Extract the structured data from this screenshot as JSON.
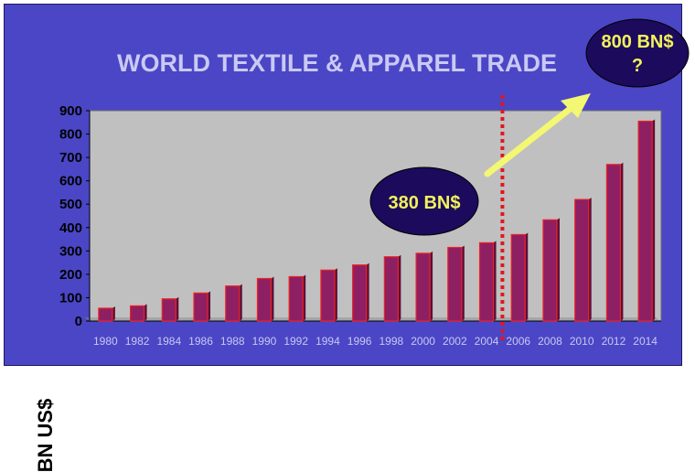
{
  "title": "WORLD TEXTILE & APPAREL TRADE",
  "chart_data": {
    "type": "bar",
    "title": "WORLD TEXTILE & APPAREL TRADE",
    "xlabel": "",
    "ylabel": "BN US$",
    "ylim": [
      0,
      900
    ],
    "yticks": [
      0,
      100,
      200,
      300,
      400,
      500,
      600,
      700,
      800,
      900
    ],
    "categories": [
      "1980",
      "1982",
      "1984",
      "1986",
      "1988",
      "1990",
      "1992",
      "1994",
      "1996",
      "1998",
      "2000",
      "2002",
      "2004",
      "2006",
      "2008",
      "2010",
      "2012",
      "2014"
    ],
    "values": [
      55,
      65,
      95,
      120,
      150,
      182,
      190,
      218,
      240,
      275,
      290,
      315,
      335,
      370,
      433,
      520,
      670,
      855
    ],
    "grid": false,
    "colors": {
      "bar": "#8e1f63",
      "bar_edge": "#ee2222",
      "plot_bg": "#c0c0c0",
      "frame_bg": "#4b46c6",
      "divider": "#e3161e",
      "arrow": "#f4f772",
      "ellipse": "#1c0a5c",
      "ellipse_text": "#f2f25c",
      "tick_text": "#c8c8f0"
    },
    "annotations": [
      {
        "label": "380 BN$"
      },
      {
        "label": "800 BN$\n?"
      }
    ],
    "divider_x": "2004.5"
  }
}
